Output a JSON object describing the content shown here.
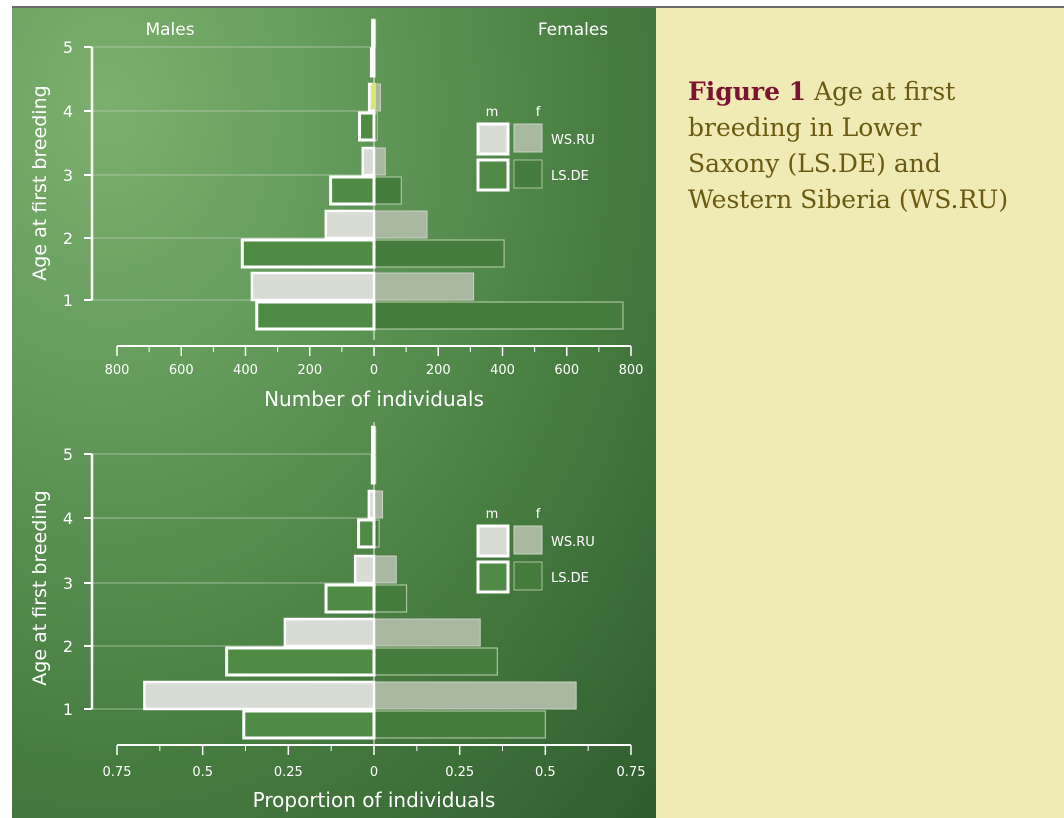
{
  "caption": {
    "label": "Figure 1",
    "text": "Age at first breeding in Lower Saxony (LS.DE)  and Western Siberia (WS.RU)"
  },
  "header": {
    "males": "Males",
    "females": "Females"
  },
  "colors": {
    "background_dark": "#2f5c2e",
    "background_light": "#7cb06e",
    "ws_male_fill": "#d9dcd5",
    "ws_female_fill": "#a8b8a1",
    "ls_male_fill": "#4f8b44",
    "ls_female_fill": "#467c3d",
    "caption_bg": "#f0ebb4",
    "caption_text": "#6b5a12",
    "caption_label": "#7a1430",
    "highlight": "#d9e86a"
  },
  "chart_data": [
    {
      "type": "bar",
      "orientation": "horizontal-pyramid",
      "categories": [
        "1",
        "2",
        "3",
        "4",
        "5"
      ],
      "ylabel": "Age at first breeding",
      "xlabel": "Number of individuals",
      "xlim": [
        0,
        800
      ],
      "xticks": [
        "800",
        "600",
        "400",
        "200",
        "0",
        "200",
        "400",
        "600",
        "800"
      ],
      "legend": {
        "position": "top-right",
        "col_headers": [
          "m",
          "f"
        ],
        "rows": [
          "WS.RU",
          "LS.DE"
        ]
      },
      "series": [
        {
          "name": "WS.RU",
          "sex": "m",
          "values": [
            380,
            150,
            35,
            15,
            5
          ]
        },
        {
          "name": "WS.RU",
          "sex": "f",
          "values": [
            310,
            165,
            35,
            20,
            5
          ]
        },
        {
          "name": "LS.DE",
          "sex": "m",
          "values": [
            365,
            410,
            135,
            45,
            8
          ]
        },
        {
          "name": "LS.DE",
          "sex": "f",
          "values": [
            775,
            405,
            85,
            10,
            2
          ]
        }
      ]
    },
    {
      "type": "bar",
      "orientation": "horizontal-pyramid",
      "categories": [
        "1",
        "2",
        "3",
        "4",
        "5"
      ],
      "ylabel": "Age at first breeding",
      "xlabel": "Proportion of individuals",
      "xlim": [
        0,
        0.75
      ],
      "xticks": [
        "0.75",
        "0.5",
        "0.25",
        "0",
        "0.25",
        "0.5",
        "0.75"
      ],
      "legend": {
        "position": "top-right",
        "col_headers": [
          "m",
          "f"
        ],
        "rows": [
          "WS.RU",
          "LS.DE"
        ]
      },
      "series": [
        {
          "name": "WS.RU",
          "sex": "m",
          "values": [
            0.67,
            0.26,
            0.055,
            0.015,
            0.005
          ]
        },
        {
          "name": "WS.RU",
          "sex": "f",
          "values": [
            0.59,
            0.31,
            0.065,
            0.025,
            0.005
          ]
        },
        {
          "name": "LS.DE",
          "sex": "m",
          "values": [
            0.38,
            0.43,
            0.14,
            0.045,
            0.005
          ]
        },
        {
          "name": "LS.DE",
          "sex": "f",
          "values": [
            0.5,
            0.36,
            0.095,
            0.015,
            0.005
          ]
        }
      ]
    }
  ]
}
